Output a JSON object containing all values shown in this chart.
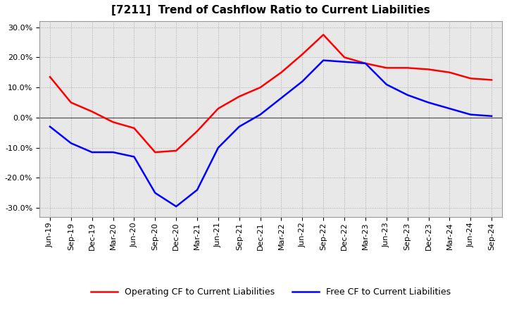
{
  "title": "[7211]  Trend of Cashflow Ratio to Current Liabilities",
  "x_labels": [
    "Jun-19",
    "Sep-19",
    "Dec-19",
    "Mar-20",
    "Jun-20",
    "Sep-20",
    "Dec-20",
    "Mar-21",
    "Jun-21",
    "Sep-21",
    "Dec-21",
    "Mar-22",
    "Jun-22",
    "Sep-22",
    "Dec-22",
    "Mar-23",
    "Jun-23",
    "Sep-23",
    "Dec-23",
    "Mar-24",
    "Jun-24",
    "Sep-24"
  ],
  "operating_cf": [
    13.5,
    5.0,
    2.0,
    -1.5,
    -3.5,
    -11.5,
    -11.0,
    -4.5,
    3.0,
    7.0,
    10.0,
    15.0,
    21.0,
    27.5,
    20.0,
    18.0,
    16.5,
    16.5,
    16.0,
    15.0,
    13.0,
    12.5
  ],
  "free_cf": [
    -3.0,
    -8.5,
    -11.5,
    -11.5,
    -13.0,
    -25.0,
    -29.5,
    -24.0,
    -10.0,
    -3.0,
    1.0,
    6.5,
    12.0,
    19.0,
    18.5,
    18.0,
    11.0,
    7.5,
    5.0,
    3.0,
    1.0,
    0.5
  ],
  "operating_color": "#FF0000",
  "free_color": "#0000FF",
  "ylim": [
    -33,
    32
  ],
  "yticks": [
    -30,
    -20,
    -10,
    0,
    10,
    20,
    30
  ],
  "background_color": "#FFFFFF",
  "plot_bg_color": "#E8E8E8",
  "grid_color": "#AAAAAA",
  "zero_line_color": "#555555",
  "title_fontsize": 11,
  "tick_fontsize": 8,
  "legend_fontsize": 9,
  "legend_labels": [
    "Operating CF to Current Liabilities",
    "Free CF to Current Liabilities"
  ]
}
